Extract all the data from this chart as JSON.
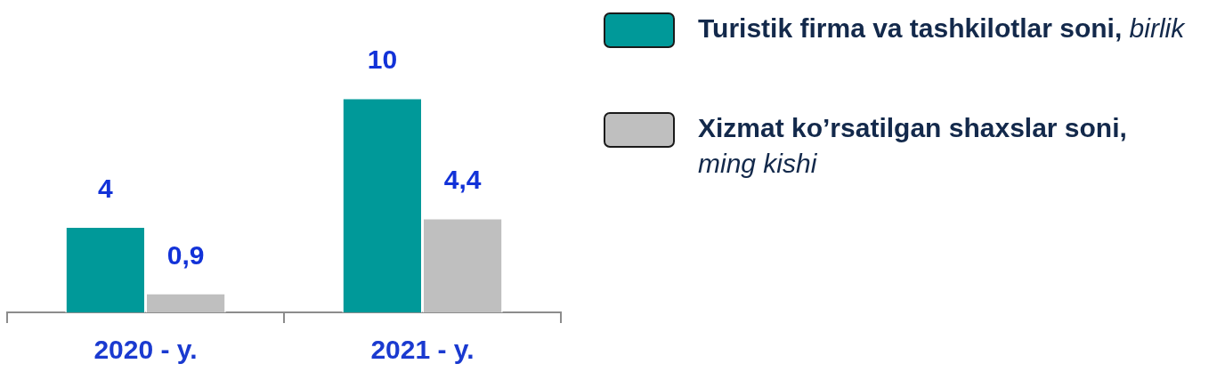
{
  "chart_data": {
    "type": "bar",
    "categories": [
      "2020 - y.",
      "2021 - y."
    ],
    "series": [
      {
        "name": "Turistik firma va tashkilotlar soni, birlik",
        "color": "#009999",
        "values": [
          4,
          10
        ],
        "value_labels": [
          "4",
          "10"
        ]
      },
      {
        "name": "Xizmat ko’rsatilgan shaxslar soni, ming kishi",
        "color": "#bfbfbf",
        "values": [
          0.9,
          4.4
        ],
        "value_labels": [
          "0,9",
          "4,4"
        ]
      }
    ],
    "tick_labels": "x",
    "legend": "right"
  }
}
